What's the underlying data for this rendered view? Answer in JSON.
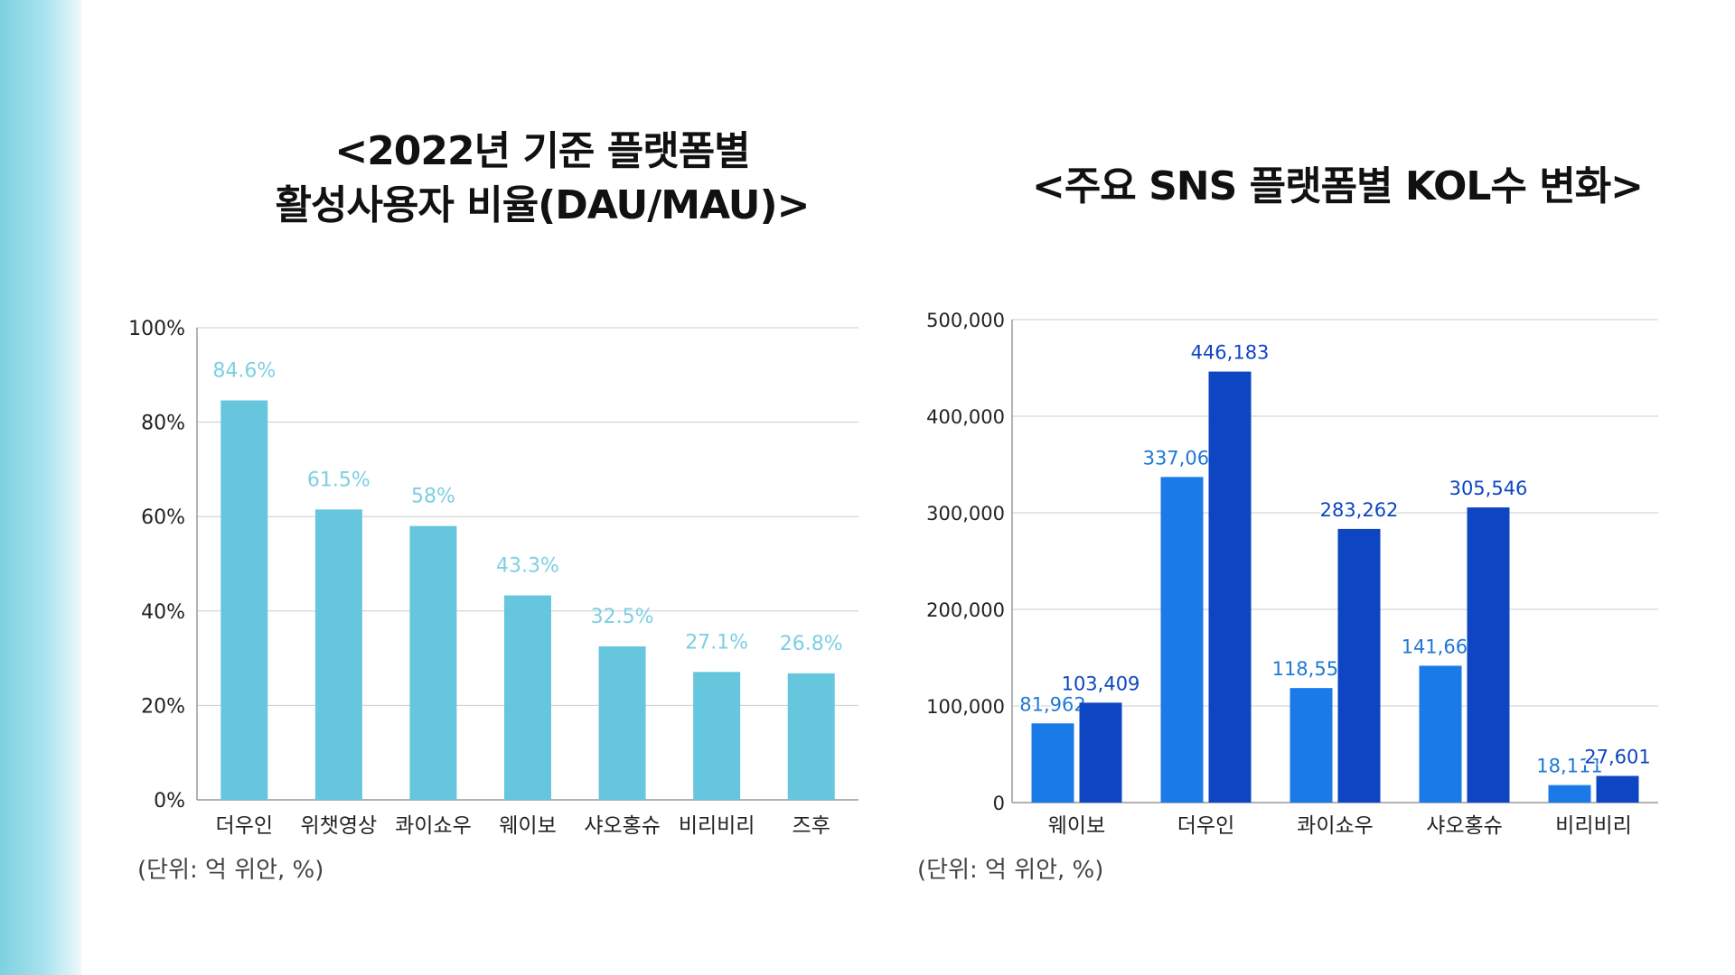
{
  "titles": {
    "left_line1": "<2022년 기준 플랫폼별",
    "left_line2": "활성사용자 비율(DAU/MAU)>",
    "right": "<주요 SNS 플랫폼별 KOL수 변화>"
  },
  "notes": {
    "left_unit": "(단위: 억 위안, %)",
    "right_unit": "(단위: 억 위안, %)"
  },
  "chart_data": [
    {
      "type": "bar",
      "categories": [
        "더우인",
        "위챗영상",
        "콰이쇼우",
        "웨이보",
        "샤오홍슈",
        "비리비리",
        "즈후"
      ],
      "values": [
        84.6,
        61.5,
        58,
        43.3,
        32.5,
        27.1,
        26.8
      ],
      "value_labels": [
        "84.6%",
        "61.5%",
        "58%",
        "43.3%",
        "32.5%",
        "27.1%",
        "26.8%"
      ],
      "ylim": [
        0,
        100
      ],
      "yticks": [
        0,
        20,
        40,
        60,
        80,
        100
      ],
      "ytick_labels": [
        "0%",
        "20%",
        "40%",
        "60%",
        "80%",
        "100%"
      ],
      "grid": true,
      "colors": {
        "bar": "#66c6de",
        "label": "#7dcfe3",
        "grid": "#cccccc",
        "axis": "#999999",
        "tick": "#222222"
      }
    },
    {
      "type": "bar",
      "categories": [
        "웨이보",
        "더우인",
        "콰이쇼우",
        "샤오홍슈",
        "비리비리"
      ],
      "series": [
        {
          "values": [
            81962,
            337066,
            118553,
            141667,
            18111
          ],
          "value_labels": [
            "81,962",
            "337,066",
            "118,553",
            "141,667",
            "18,111"
          ]
        },
        {
          "values": [
            103409,
            446183,
            283262,
            305546,
            27601
          ],
          "value_labels": [
            "103,409",
            "446,183",
            "283,262",
            "305,546",
            "27,601"
          ]
        }
      ],
      "ylim": [
        0,
        500000
      ],
      "yticks": [
        0,
        100000,
        200000,
        300000,
        400000,
        500000
      ],
      "ytick_labels": [
        "0",
        "100,000",
        "200,000",
        "300,000",
        "400,000",
        "500,000"
      ],
      "grid": true,
      "colors": {
        "series": [
          "#1a7be8",
          "#0e45c2"
        ],
        "labels": [
          "#1f78d6",
          "#0e45c2"
        ],
        "grid": "#cccccc",
        "axis": "#999999",
        "tick": "#222222"
      }
    }
  ]
}
